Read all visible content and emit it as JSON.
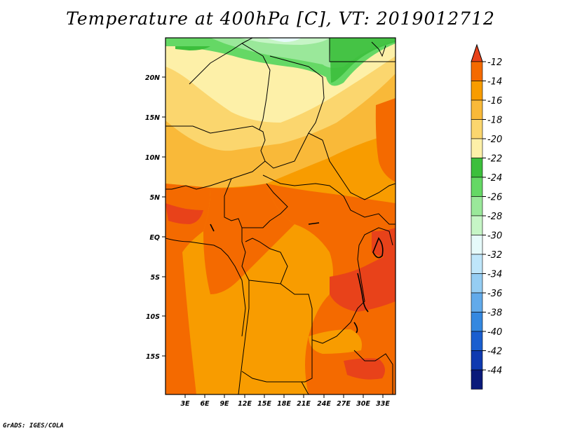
{
  "title": "Temperature at 400hPa [C], VT: 2019012712",
  "credit": "GrADS: IGES/COLA",
  "lat_labels": [
    "20N",
    "15N",
    "10N",
    "5N",
    "EQ",
    "5S",
    "10S",
    "15S"
  ],
  "lon_labels": [
    "3E",
    "6E",
    "9E",
    "12E",
    "15E",
    "18E",
    "21E",
    "24E",
    "27E",
    "30E",
    "33E"
  ],
  "colorbar": {
    "labels": [
      "-12",
      "-14",
      "-16",
      "-18",
      "-20",
      "-22",
      "-24",
      "-26",
      "-28",
      "-30",
      "-32",
      "-34",
      "-36",
      "-38",
      "-40",
      "-42",
      "-44"
    ],
    "colors": [
      "#e8421a",
      "#f46a00",
      "#f89c00",
      "#f9b939",
      "#fbd66e",
      "#fdf0a8",
      "#3cbf3c",
      "#65d865",
      "#9ae89a",
      "#c6f5c6",
      "#e6fafa",
      "#bfe6fa",
      "#95cdf3",
      "#62aaea",
      "#3488e0",
      "#1a5ecf",
      "#0f3ab0",
      "#0a1a7a",
      "#e0e0f8"
    ]
  }
}
